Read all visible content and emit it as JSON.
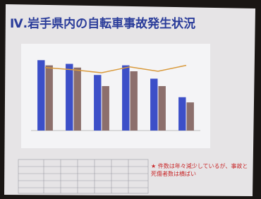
{
  "slide": {
    "title": "Ⅳ.岩手県内の自転車事故発生状況",
    "note": "★ 件数は年々減少しているが、事故と死傷者数は横ばい"
  },
  "chart_data": {
    "type": "bar",
    "categories": [
      null,
      null,
      null,
      null,
      null,
      null
    ],
    "ylim": [
      0,
      100
    ],
    "series": [
      {
        "type": "bar",
        "color": "#3c4fc8",
        "values": [
          95,
          90,
          75,
          88,
          70,
          45
        ]
      },
      {
        "type": "bar",
        "color": "#8c6f6c",
        "values": [
          88,
          85,
          60,
          80,
          60,
          38
        ]
      },
      {
        "type": "line",
        "color": "#d99a3c",
        "values": [
          85,
          82,
          78,
          86,
          80,
          88
        ]
      }
    ]
  }
}
